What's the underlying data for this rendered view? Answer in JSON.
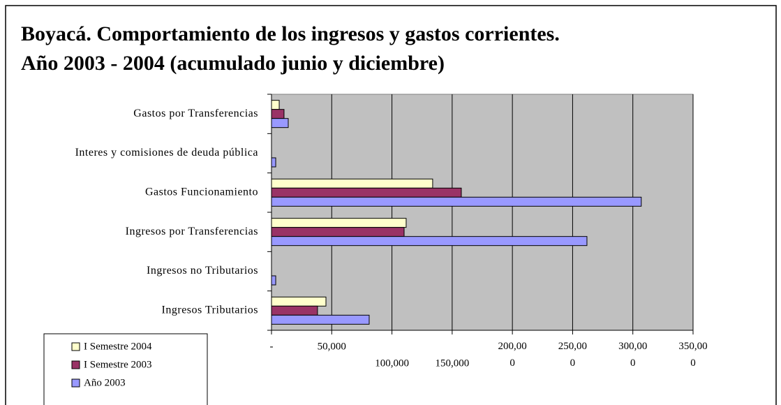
{
  "chart_data": {
    "type": "hbar",
    "title": [
      "Boyacá. Comportamiento de los ingresos y gastos corrientes.",
      "Año 2003 - 2004 (acumulado junio y diciembre)"
    ],
    "categories": [
      "Gastos por Transferencias",
      "Interes y comisiones de deuda pública",
      "Gastos Funcionamiento",
      "Ingresos por Transferencias",
      "Ingresos no Tributarios",
      "Ingresos Tributarios"
    ],
    "series": [
      {
        "name": "I Semestre 2004",
        "color": "#ffffcc",
        "values": [
          6400,
          0,
          133800,
          111800,
          0,
          45200
        ]
      },
      {
        "name": "I Semestre 2003",
        "color": "#993366",
        "values": [
          10400,
          0,
          157600,
          110100,
          0,
          38200
        ]
      },
      {
        "name": "Año 2003",
        "color": "#9999ff",
        "values": [
          13900,
          3500,
          307000,
          261900,
          3500,
          81100
        ]
      }
    ],
    "xlim": [
      0,
      350000
    ],
    "xticks": [
      {
        "value": 0,
        "label": "-"
      },
      {
        "value": 50000,
        "label": "50,000"
      },
      {
        "value": 100000,
        "label": "100,000"
      },
      {
        "value": 150000,
        "label": "150,000"
      },
      {
        "value": 200000,
        "label": "200,000"
      },
      {
        "value": 250000,
        "label": "250,000"
      },
      {
        "value": 300000,
        "label": "300,000"
      },
      {
        "value": 350000,
        "label": "350,000"
      }
    ],
    "grid": true,
    "plot_background": "#c0c0c0",
    "legend": "bottom-left"
  }
}
